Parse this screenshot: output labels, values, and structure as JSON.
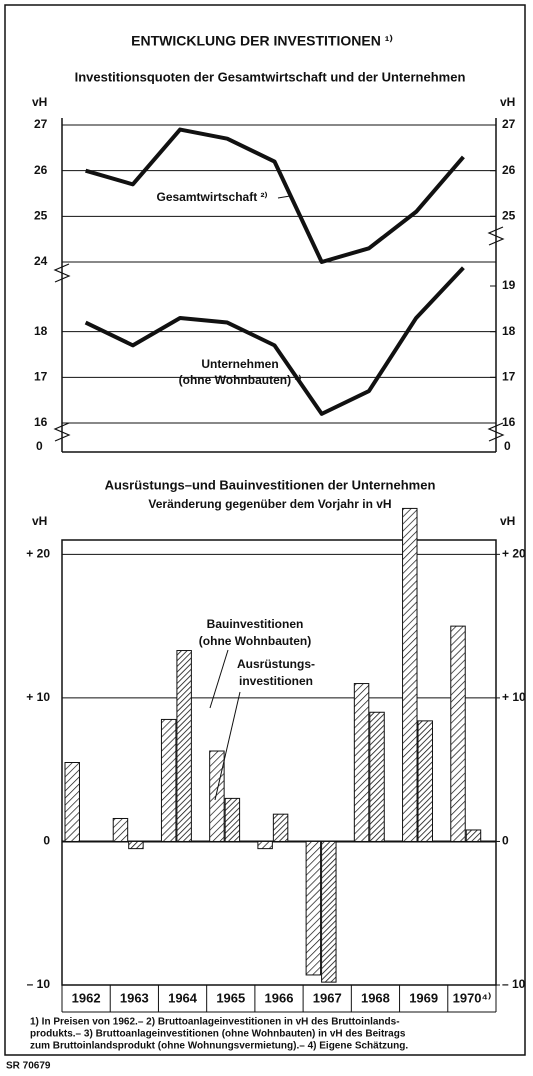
{
  "title": "ENTWICKLUNG DER INVESTITIONEN ¹⁾",
  "chart_data": [
    {
      "type": "line",
      "title": "Investitionsquoten der Gesamtwirtschaft und der Unternehmen",
      "ylabel": "vH",
      "y2label": "vH",
      "categories": [
        "1962",
        "1963",
        "1964",
        "1965",
        "1966",
        "1967",
        "1968",
        "1969",
        "1970"
      ],
      "baseline_tick": 0,
      "grid": true,
      "panels": [
        {
          "ylim": [
            24,
            27
          ],
          "yticks": [
            24,
            25,
            26,
            27
          ],
          "y2ticks": [
            25,
            26,
            27
          ],
          "series": [
            {
              "color": "#111",
              "values": [
                26.0,
                25.7,
                26.9,
                26.7,
                26.2,
                24.0,
                24.3,
                25.1,
                26.3
              ]
            }
          ],
          "annotations": [
            "Gesamtwirtschaft ²⁾"
          ]
        },
        {
          "ylim": [
            16,
            19
          ],
          "yticks": [
            16,
            17,
            18
          ],
          "y2ticks": [
            16,
            17,
            18,
            19
          ],
          "series": [
            {
              "color": "#111",
              "values": [
                18.2,
                17.7,
                18.3,
                18.2,
                17.7,
                16.2,
                16.7,
                18.3,
                19.4
              ]
            }
          ],
          "annotations": [
            "Unternehmen",
            "(ohne Wohnbauten) ³⁾"
          ]
        }
      ]
    },
    {
      "type": "bar",
      "title": "Ausrüstungs–und Bauinvestitionen der Unternehmen",
      "subtitle": "Veränderung gegenüber dem Vorjahr in vH",
      "ylabel": "vH",
      "y2label": "vH",
      "categories": [
        "1962",
        "1963",
        "1964",
        "1965",
        "1966",
        "1967",
        "1968",
        "1969",
        "1970⁴⁾"
      ],
      "ylim": [
        -10,
        21
      ],
      "yticks": [
        {
          "value": -10,
          "label": "– 10"
        },
        0,
        {
          "value": 10,
          "label": "+ 10"
        },
        {
          "value": 20,
          "label": "+ 20"
        }
      ],
      "y2ticks": [
        {
          "value": -10,
          "label": "– 10"
        },
        0,
        {
          "value": 10,
          "label": "+ 10"
        },
        {
          "value": 20,
          "label": "+ 20"
        }
      ],
      "grid": true,
      "series": [
        {
          "color": "#111",
          "values": [
            5.5,
            1.6,
            8.5,
            6.3,
            -0.5,
            -9.3,
            11.0,
            23.2,
            15.0
          ]
        },
        {
          "color": "#111",
          "values": [
            0,
            -0.5,
            13.3,
            3.0,
            1.9,
            -9.8,
            9.0,
            8.4,
            0.8
          ]
        }
      ],
      "annotations": [
        "Bauinvestitionen",
        "(ohne Wohnbauten)",
        "Ausrüstungs-",
        "investitionen"
      ]
    }
  ],
  "footnotes": [
    "1) In Preisen von 1962.– 2) Bruttoanlageinvestitionen in vH des Bruttoinlands-",
    "produkts.– 3) Bruttoanlageinvestitionen (ohne Wohnbauten) in vH des Beitrags",
    "zum Bruttoinlandsprodukt (ohne Wohnungsvermietung).– 4) Eigene Schätzung."
  ],
  "code": "SR 70679"
}
